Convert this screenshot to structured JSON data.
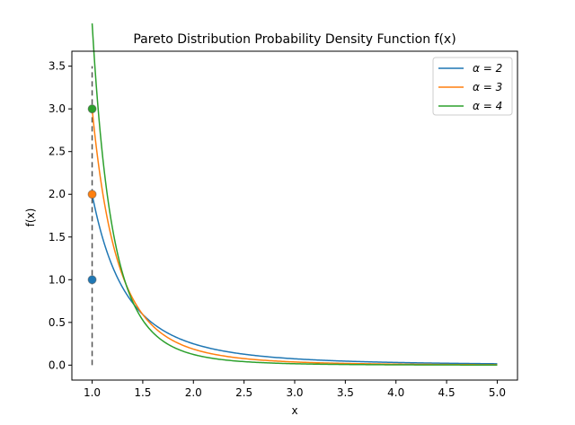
{
  "chart_data": {
    "type": "line",
    "title": "Pareto Distribution Probability Density Function f(x)",
    "xlabel": "x",
    "ylabel": "f(x)",
    "xlim": [
      0.8,
      5.2
    ],
    "ylim": [
      -0.175,
      3.675
    ],
    "xticks": [
      1.0,
      1.5,
      2.0,
      2.5,
      3.0,
      3.5,
      4.0,
      4.5,
      5.0
    ],
    "xtick_labels": [
      "1.0",
      "1.5",
      "2.0",
      "2.5",
      "3.0",
      "3.5",
      "4.0",
      "4.5",
      "5.0"
    ],
    "yticks": [
      0.0,
      0.5,
      1.0,
      1.5,
      2.0,
      2.5,
      3.0,
      3.5
    ],
    "ytick_labels": [
      "0.0",
      "0.5",
      "1.0",
      "1.5",
      "2.0",
      "2.5",
      "3.0",
      "3.5"
    ],
    "grid": false,
    "legend_position": "top-right",
    "x_min": 1.0,
    "x_max": 5.0,
    "series": [
      {
        "name": "α = 2",
        "alpha": 2,
        "color": "#1f77b4",
        "start_point": [
          1.0,
          1.0
        ]
      },
      {
        "name": "α = 3",
        "alpha": 3,
        "color": "#ff7f0e",
        "start_point": [
          1.0,
          2.0
        ]
      },
      {
        "name": "α = 4",
        "alpha": 4,
        "color": "#2ca02c",
        "start_point": [
          1.0,
          3.0
        ]
      }
    ],
    "vertical_line": {
      "x": 1.0,
      "y_from": 0.0,
      "y_to": 3.5,
      "style": "dashed",
      "color": "#555555"
    }
  }
}
